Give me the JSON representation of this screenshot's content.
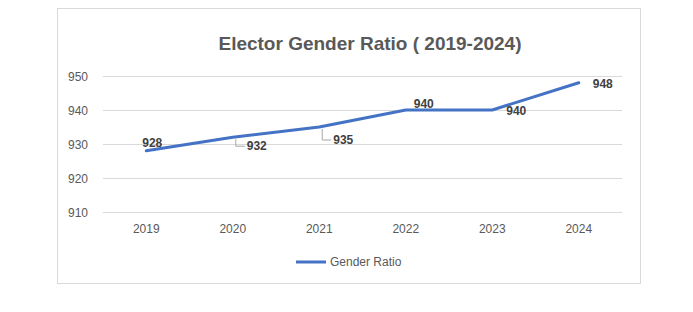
{
  "chart_data": {
    "type": "line",
    "title": "Elector Gender Ratio ( 2019-2024)",
    "categories": [
      "2019",
      "2020",
      "2021",
      "2022",
      "2023",
      "2024"
    ],
    "series": [
      {
        "name": "Gender Ratio",
        "color": "#4472c4",
        "values": [
          928,
          932,
          935,
          940,
          940,
          948
        ]
      }
    ],
    "ylim": [
      910,
      950
    ],
    "yticks": [
      910,
      920,
      930,
      940,
      950
    ],
    "grid": true,
    "legend": "bottom",
    "data_labels": true
  }
}
